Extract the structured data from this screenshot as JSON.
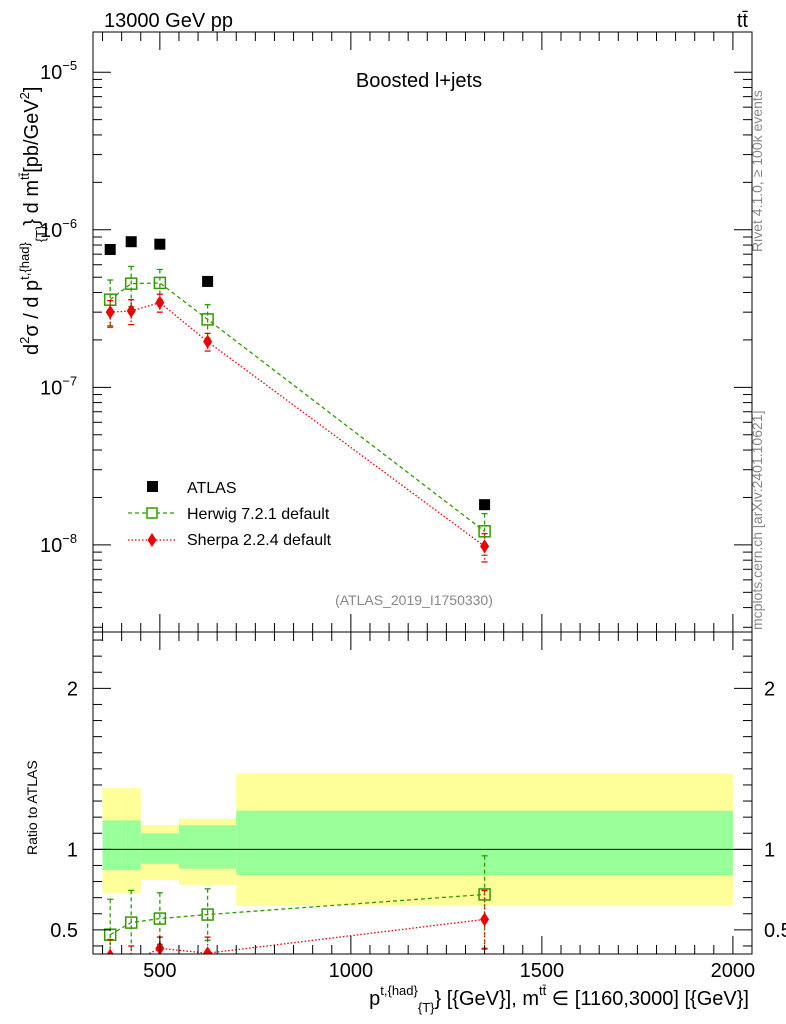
{
  "header": {
    "energy_label": "13000 GeV pp",
    "process_label": "tt̄"
  },
  "side_labels": {
    "rivet": "Rivet 4.1.0, ≥ 100k events",
    "mcplots": "mcplots.cern.ch [arXiv:2401.10621]"
  },
  "colors": {
    "atlas": "#000000",
    "herwig": "#339900",
    "sherpa": "#ee0000",
    "band_inner": "#99ff99",
    "band_outer": "#ffff99"
  },
  "chart_data": [
    {
      "type": "scatter",
      "panel": "main",
      "title": "Boosted l+jets",
      "analysis_label": "(ATLAS_2019_I1750330)",
      "ylabel_parts": {
        "prefix": "d",
        "sup1": "2",
        "sigma": "σ /  d p",
        "sup2": "t,{had}",
        "sub": "{T}",
        "mid": "} d m",
        "sup3": "tt̄",
        "unit": "[pb/GeV",
        "unit_sup": "2",
        "close": "]"
      },
      "yscale": "log",
      "ylim": [
        2.8e-09,
        1.8e-05
      ],
      "xlim": [
        325,
        2050
      ],
      "yticks": [
        {
          "value": 1e-08,
          "base": "10",
          "exp": "−8"
        },
        {
          "value": 1e-07,
          "base": "10",
          "exp": "−7"
        },
        {
          "value": 1e-06,
          "base": "10",
          "exp": "−6"
        },
        {
          "value": 1e-05,
          "base": "10",
          "exp": "−5"
        }
      ],
      "legend": {
        "position": "bottom-left",
        "entries": [
          "ATLAS",
          "Herwig 7.2.1 default",
          "Sherpa 2.2.4 default"
        ]
      },
      "series": [
        {
          "name": "ATLAS",
          "style": "square",
          "x": [
            370,
            425,
            500,
            625,
            1350
          ],
          "y": [
            7.5e-07,
            8.4e-07,
            8.1e-07,
            4.7e-07,
            1.8e-08
          ]
        },
        {
          "name": "Herwig 7.2.1 default",
          "style": "open-square-dashed",
          "x": [
            370,
            425,
            500,
            625,
            1350
          ],
          "y": [
            3.6e-07,
            4.55e-07,
            4.6e-07,
            2.7e-07,
            1.22e-08
          ],
          "err_up": [
            1.2e-07,
            1.3e-07,
            1e-07,
            6.5e-08,
            3.6e-09
          ],
          "err_down": [
            1.2e-07,
            1.3e-07,
            1e-07,
            6.5e-08,
            3.6e-09
          ]
        },
        {
          "name": "Sherpa 2.2.4 default",
          "style": "diamond-dotted",
          "x": [
            370,
            425,
            500,
            625,
            1350
          ],
          "y": [
            3e-07,
            3.05e-07,
            3.45e-07,
            1.95e-07,
            9.8e-09
          ],
          "err_up": [
            5.5e-08,
            5.5e-08,
            4.5e-08,
            2.5e-08,
            2e-09
          ],
          "err_down": [
            5.5e-08,
            5.5e-08,
            4.5e-08,
            2.5e-08,
            2e-09
          ]
        }
      ]
    },
    {
      "type": "line",
      "panel": "ratio",
      "ylabel": "Ratio to ATLAS",
      "xlabel_parts": {
        "p": "p",
        "sup1": "t,{had}",
        "sub": "{T}",
        "mid": "} [{GeV}], m",
        "sup2": "tt̄",
        "range": " ∈ [1160,3000] [{GeV}]"
      },
      "xlim": [
        325,
        2050
      ],
      "ylim": [
        0.35,
        2.35
      ],
      "xticks": [
        500,
        1000,
        1500,
        2000
      ],
      "yticks": [
        0.5,
        1,
        2
      ],
      "bands": {
        "edges": [
          350,
          400,
          450,
          550,
          700,
          2000
        ],
        "inner_low": [
          0.87,
          0.87,
          0.91,
          0.88,
          0.84
        ],
        "inner_high": [
          1.18,
          1.18,
          1.1,
          1.15,
          1.24
        ],
        "outer_low": [
          0.73,
          0.73,
          0.81,
          0.78,
          0.65
        ],
        "outer_high": [
          1.38,
          1.38,
          1.15,
          1.19,
          1.47
        ]
      },
      "series": [
        {
          "name": "Herwig 7.2.1 default",
          "x": [
            370,
            425,
            500,
            625,
            1350
          ],
          "y": [
            0.47,
            0.545,
            0.57,
            0.595,
            0.72
          ],
          "err_up": [
            0.22,
            0.2,
            0.16,
            0.16,
            0.24
          ],
          "err_down": [
            0.22,
            0.2,
            0.16,
            0.16,
            0.34
          ]
        },
        {
          "name": "Sherpa 2.2.4 default",
          "x": [
            370,
            425,
            500,
            625,
            1350
          ],
          "y": [
            0.34,
            0.3,
            0.385,
            0.355,
            0.565
          ],
          "err_up": [
            0.1,
            0.1,
            0.07,
            0.1,
            0.18
          ],
          "err_down": [
            0.1,
            0.1,
            0.07,
            0.1,
            0.18
          ]
        }
      ]
    }
  ]
}
